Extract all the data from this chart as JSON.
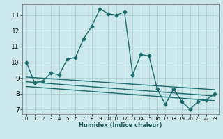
{
  "xlabel": "Humidex (Indice chaleur)",
  "ylabel": "",
  "bg_color": "#cce8ea",
  "grid_color": "#aacfd4",
  "line_color": "#1a6b6b",
  "xlim": [
    -0.5,
    23.5
  ],
  "ylim": [
    6.7,
    13.7
  ],
  "xticks": [
    0,
    1,
    2,
    3,
    4,
    5,
    6,
    7,
    8,
    9,
    10,
    11,
    12,
    13,
    14,
    15,
    16,
    17,
    18,
    19,
    20,
    21,
    22,
    23
  ],
  "yticks": [
    7,
    8,
    9,
    10,
    11,
    12,
    13
  ],
  "main_x": [
    0,
    1,
    2,
    3,
    4,
    5,
    6,
    7,
    8,
    9,
    10,
    11,
    12,
    13,
    14,
    15,
    16,
    17,
    18,
    19,
    20,
    21,
    22,
    23
  ],
  "main_y": [
    10.0,
    8.7,
    8.8,
    9.3,
    9.2,
    10.2,
    10.3,
    11.5,
    12.3,
    13.4,
    13.1,
    13.0,
    13.2,
    9.2,
    10.5,
    10.4,
    8.3,
    7.3,
    8.3,
    7.5,
    7.0,
    7.5,
    7.6,
    8.0
  ],
  "line2_x": [
    0,
    23
  ],
  "line2_y": [
    9.05,
    8.25
  ],
  "line3_x": [
    0,
    23
  ],
  "line3_y": [
    8.75,
    7.85
  ],
  "line4_x": [
    0,
    23
  ],
  "line4_y": [
    8.45,
    7.55
  ],
  "marker": "D",
  "markersize": 2.5,
  "linewidth": 1.0
}
